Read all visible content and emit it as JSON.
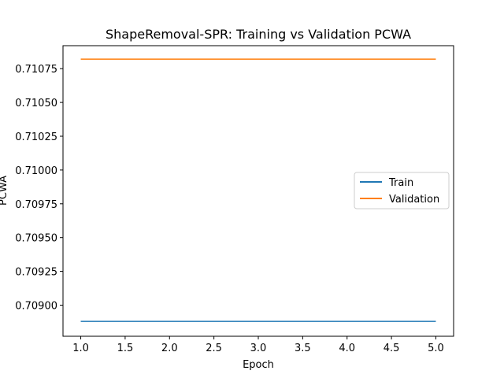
{
  "chart_data": {
    "type": "line",
    "title": "ShapeRemoval-SPR: Training vs Validation PCWA",
    "xlabel": "Epoch",
    "ylabel": "PCWA",
    "x": [
      1,
      2,
      3,
      4,
      5
    ],
    "xlim": [
      0.8,
      5.2
    ],
    "ylim": [
      0.70877,
      0.71092
    ],
    "xticks": [
      "1.0",
      "1.5",
      "2.0",
      "2.5",
      "3.0",
      "3.5",
      "4.0",
      "4.5",
      "5.0"
    ],
    "yticks": [
      "0.70900",
      "0.70925",
      "0.70950",
      "0.70975",
      "0.71000",
      "0.71025",
      "0.71050",
      "0.71075"
    ],
    "series": [
      {
        "name": "Train",
        "color": "#1f77b4",
        "values": [
          0.70888,
          0.70888,
          0.70888,
          0.70888,
          0.70888
        ]
      },
      {
        "name": "Validation",
        "color": "#ff7f0e",
        "values": [
          0.71082,
          0.71082,
          0.71082,
          0.71082,
          0.71082
        ]
      }
    ],
    "grid": false,
    "legend_position": "center-right"
  }
}
